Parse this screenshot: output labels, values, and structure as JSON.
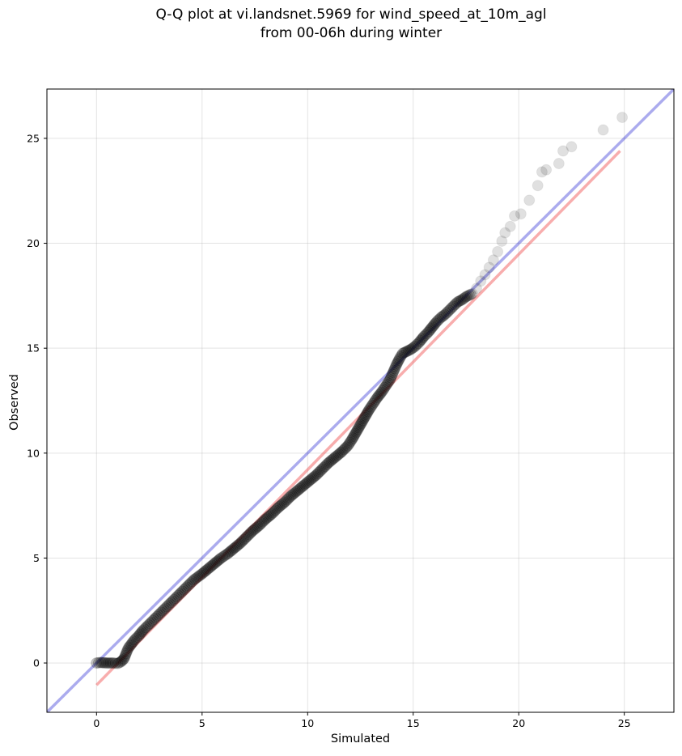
{
  "chart_data": {
    "type": "scatter",
    "title": "Q-Q plot at vi.landsnet.5969 for wind_speed_at_10m_agl",
    "subtitle": "from 00-06h during winter",
    "xlabel": "Simulated",
    "ylabel": "Observed",
    "xlim": [
      -2.35,
      27.35
    ],
    "ylim": [
      -2.35,
      27.35
    ],
    "xticks": [
      0,
      5,
      10,
      15,
      20,
      25
    ],
    "yticks": [
      0,
      5,
      10,
      15,
      20,
      25
    ],
    "grid": true,
    "quantile_points": [
      [
        0.0,
        0.0
      ],
      [
        0.2,
        0.02
      ],
      [
        0.5,
        0.0
      ],
      [
        0.8,
        0.0
      ],
      [
        1.0,
        -0.02
      ],
      [
        1.15,
        0.05
      ],
      [
        1.3,
        0.2
      ],
      [
        1.4,
        0.45
      ],
      [
        1.5,
        0.7
      ],
      [
        1.65,
        0.9
      ],
      [
        1.8,
        1.1
      ],
      [
        2.0,
        1.3
      ],
      [
        2.2,
        1.55
      ],
      [
        2.4,
        1.75
      ],
      [
        2.6,
        1.95
      ],
      [
        2.8,
        2.15
      ],
      [
        3.0,
        2.35
      ],
      [
        3.2,
        2.55
      ],
      [
        3.4,
        2.75
      ],
      [
        3.6,
        2.95
      ],
      [
        3.8,
        3.15
      ],
      [
        4.0,
        3.35
      ],
      [
        4.2,
        3.55
      ],
      [
        4.4,
        3.75
      ],
      [
        4.6,
        3.95
      ],
      [
        4.8,
        4.1
      ],
      [
        5.0,
        4.25
      ],
      [
        5.3,
        4.5
      ],
      [
        5.6,
        4.75
      ],
      [
        5.9,
        5.0
      ],
      [
        6.2,
        5.2
      ],
      [
        6.5,
        5.45
      ],
      [
        6.8,
        5.7
      ],
      [
        7.1,
        6.0
      ],
      [
        7.4,
        6.3
      ],
      [
        7.7,
        6.55
      ],
      [
        8.0,
        6.85
      ],
      [
        8.3,
        7.1
      ],
      [
        8.6,
        7.4
      ],
      [
        8.9,
        7.65
      ],
      [
        9.2,
        7.95
      ],
      [
        9.5,
        8.2
      ],
      [
        9.8,
        8.45
      ],
      [
        10.1,
        8.7
      ],
      [
        10.4,
        8.95
      ],
      [
        10.7,
        9.25
      ],
      [
        11.0,
        9.55
      ],
      [
        11.3,
        9.8
      ],
      [
        11.6,
        10.05
      ],
      [
        11.9,
        10.35
      ],
      [
        12.1,
        10.65
      ],
      [
        12.3,
        11.0
      ],
      [
        12.5,
        11.35
      ],
      [
        12.7,
        11.7
      ],
      [
        12.9,
        12.05
      ],
      [
        13.1,
        12.35
      ],
      [
        13.3,
        12.65
      ],
      [
        13.5,
        12.9
      ],
      [
        13.7,
        13.2
      ],
      [
        13.9,
        13.5
      ],
      [
        14.05,
        13.85
      ],
      [
        14.2,
        14.2
      ],
      [
        14.35,
        14.5
      ],
      [
        14.5,
        14.75
      ],
      [
        14.7,
        14.85
      ],
      [
        14.9,
        14.95
      ],
      [
        15.1,
        15.1
      ],
      [
        15.3,
        15.3
      ],
      [
        15.5,
        15.55
      ],
      [
        15.7,
        15.75
      ],
      [
        15.9,
        16.0
      ],
      [
        16.1,
        16.25
      ],
      [
        16.3,
        16.45
      ],
      [
        16.5,
        16.6
      ],
      [
        16.7,
        16.8
      ],
      [
        16.9,
        17.0
      ],
      [
        17.1,
        17.2
      ],
      [
        17.3,
        17.3
      ],
      [
        17.5,
        17.45
      ],
      [
        17.8,
        17.6
      ],
      [
        18.0,
        17.85
      ],
      [
        18.2,
        18.2
      ],
      [
        18.4,
        18.5
      ],
      [
        18.6,
        18.85
      ],
      [
        18.8,
        19.2
      ],
      [
        19.0,
        19.6
      ],
      [
        19.2,
        20.1
      ],
      [
        19.35,
        20.5
      ],
      [
        19.6,
        20.8
      ],
      [
        19.8,
        21.3
      ],
      [
        20.1,
        21.4
      ],
      [
        20.5,
        22.05
      ],
      [
        20.9,
        22.75
      ],
      [
        21.1,
        23.4
      ],
      [
        21.3,
        23.5
      ],
      [
        21.9,
        23.8
      ],
      [
        22.1,
        24.4
      ],
      [
        22.5,
        24.6
      ],
      [
        24.0,
        25.4
      ],
      [
        24.9,
        26.0
      ]
    ],
    "identity_line": {
      "color": "#0000cc"
    },
    "fit_line": {
      "color": "#ee3333",
      "x": [
        0.0,
        24.8
      ],
      "y": [
        -1.05,
        24.4
      ]
    },
    "point_color": "#000000"
  }
}
